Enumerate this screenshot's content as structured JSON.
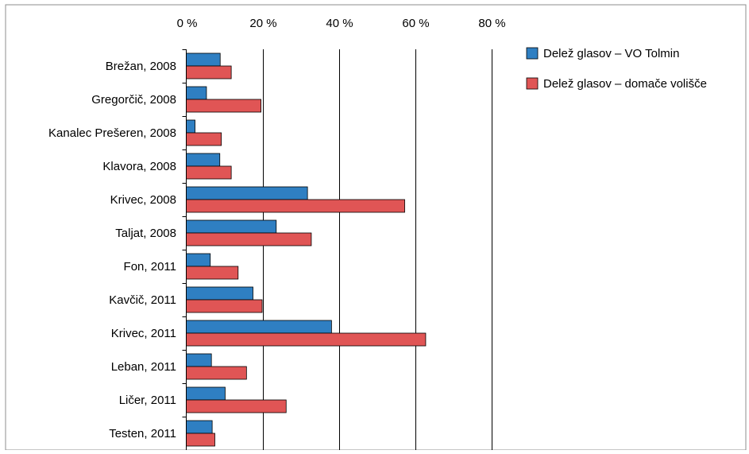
{
  "chart_data": {
    "type": "bar",
    "orientation": "horizontal",
    "categories": [
      "Brežan, 2008",
      "Gregorčič, 2008",
      "Kanalec Prešeren, 2008",
      "Klavora, 2008",
      "Krivec, 2008",
      "Taljat, 2008",
      "Fon, 2011",
      "Kavčič, 2011",
      "Krivec, 2011",
      "Leban, 2011",
      "Ličer, 2011",
      "Testen, 2011"
    ],
    "series": [
      {
        "name": "Delež glasov – VO Tolmin",
        "color": "#2f7fc2",
        "values": [
          8.9,
          5.3,
          2.3,
          8.8,
          31.8,
          23.6,
          6.3,
          17.5,
          38.1,
          6.6,
          10.2,
          6.8
        ]
      },
      {
        "name": "Delež glasov – domače volišče",
        "color": "#e05555",
        "values": [
          11.8,
          19.6,
          9.2,
          11.8,
          57.3,
          32.8,
          13.6,
          19.9,
          62.8,
          15.8,
          26.2,
          7.5
        ]
      }
    ],
    "x_ticks": [
      "0 %",
      "20 %",
      "40 %",
      "60 %",
      "80 %"
    ],
    "xlim": [
      0,
      80
    ],
    "grid": true,
    "legend_position": "top-right",
    "title": "",
    "xlabel": "",
    "ylabel": ""
  }
}
